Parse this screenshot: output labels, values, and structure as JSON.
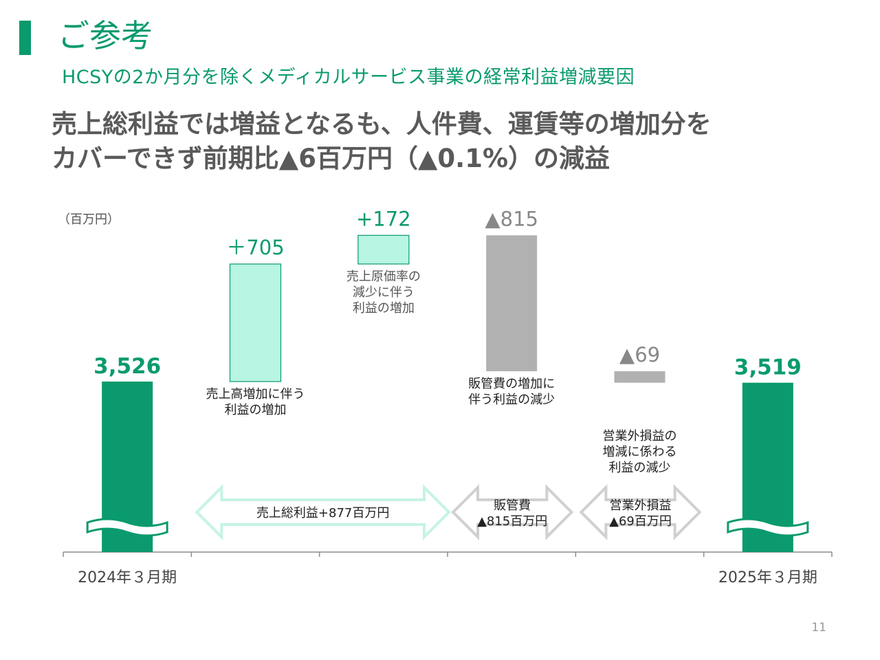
{
  "page": {
    "title": "ご参考",
    "subtitle": "HCSYの2か月分を除くメディカルサービス事業の経常利益増減要因",
    "headline_line1": "売上総利益では増益となるも、人件費、運賃等の増加分を",
    "headline_line2": "カバーできず前期比▲6百万円（▲0.1%）の減益",
    "page_number": "11"
  },
  "colors": {
    "total": "#0a9a6e",
    "increase_fill": "#b8f5e3",
    "increase_stroke": "#0a9a6e",
    "decrease": "#b1b1b1",
    "axis": "#8c8c8c",
    "increase_label": "#0a9a6e",
    "decrease_label": "#888888"
  },
  "chart_data": {
    "type": "waterfall",
    "unit_label": "（百万円）",
    "categories": [
      "2024年３月期",
      "",
      "",
      "",
      "",
      "2025年３月期"
    ],
    "bars": [
      {
        "kind": "total",
        "value": 3526,
        "label": "3,526",
        "category": "2024年３月期"
      },
      {
        "kind": "increase",
        "value": 705,
        "label": "＋705",
        "description": [
          "売上高増加に伴う",
          "利益の増加"
        ]
      },
      {
        "kind": "increase",
        "value": 172,
        "label": "+172",
        "description": [
          "売上原価率の",
          "減少に伴う",
          "利益の増加"
        ]
      },
      {
        "kind": "decrease",
        "value": -815,
        "label": "▲815",
        "description": [
          "販管費の増加に",
          "伴う利益の減少"
        ]
      },
      {
        "kind": "decrease",
        "value": -69,
        "label": "▲69",
        "description": [
          "営業外損益の",
          "増減に係わる",
          "利益の減少"
        ]
      },
      {
        "kind": "total",
        "value": 3519,
        "label": "3,519",
        "category": "2025年３月期"
      }
    ],
    "groups": [
      {
        "label": [
          "売上総利益+877百万円"
        ],
        "from_bar": 1,
        "to_bar": 2,
        "style": "increase"
      },
      {
        "label": [
          "販管費",
          "▲815百万円"
        ],
        "from_bar": 3,
        "to_bar": 3,
        "style": "decrease"
      },
      {
        "label": [
          "営業外損益",
          "▲69百万円"
        ],
        "from_bar": 4,
        "to_bar": 4,
        "style": "decrease"
      }
    ],
    "axis_broken": true
  }
}
